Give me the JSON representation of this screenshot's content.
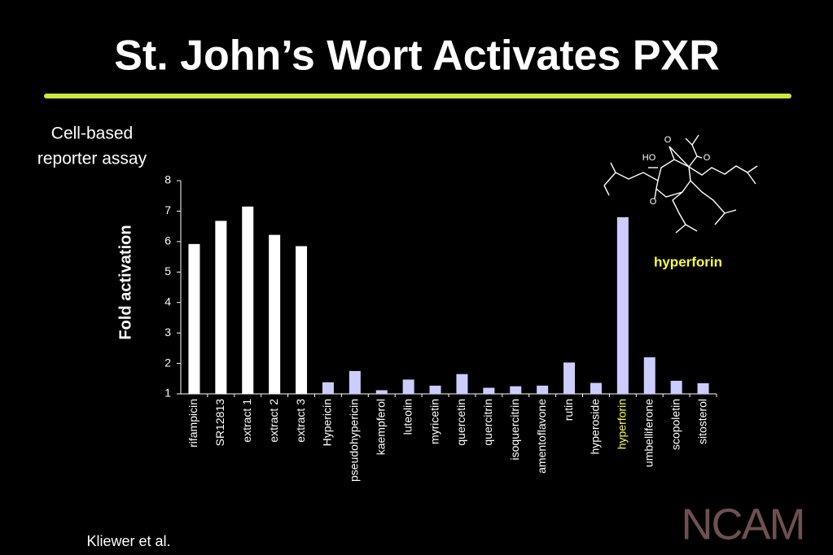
{
  "slide": {
    "title": "St. John’s Wort Activates PXR",
    "subtitle_lines": [
      "Cell-based",
      "reporter assay"
    ],
    "structure_name": "hyperforin",
    "structure_atoms": [
      "O",
      "HO",
      "O",
      "O"
    ],
    "citation": "Kliewer et al.",
    "logo": "NCAM"
  },
  "chart_data": {
    "type": "bar",
    "ylabel": "Fold activation",
    "categories": [
      "rifampicin",
      "SR12813",
      "extract 1",
      "extract 2",
      "extract 3",
      "Hypericin",
      "pseudohypericin",
      "kaempferol",
      "luteolin",
      "myricetin",
      "quercetin",
      "quercitrin",
      "isoquercitrin",
      "amentoflavone",
      "rutin",
      "hyperoside",
      "hyperforin",
      "umbelliferone",
      "scopoletin",
      "sitosterol"
    ],
    "values": [
      5.92,
      6.68,
      7.15,
      6.22,
      5.85,
      1.38,
      1.75,
      1.12,
      1.47,
      1.27,
      1.65,
      1.2,
      1.25,
      1.27,
      2.03,
      1.36,
      6.8,
      2.2,
      1.43,
      1.35
    ],
    "colors": [
      "#ffffff",
      "#ffffff",
      "#ffffff",
      "#ffffff",
      "#ffffff",
      "#ccccff",
      "#ccccff",
      "#ccccff",
      "#ccccff",
      "#ccccff",
      "#ccccff",
      "#ccccff",
      "#ccccff",
      "#ccccff",
      "#ccccff",
      "#ccccff",
      "#ccccff",
      "#ccccff",
      "#ccccff",
      "#ccccff"
    ],
    "label_colors": [
      "#ffffff",
      "#ffffff",
      "#ffffff",
      "#ffffff",
      "#ffffff",
      "#ffffff",
      "#ffffff",
      "#ffffff",
      "#ffffff",
      "#ffffff",
      "#ffffff",
      "#ffffff",
      "#ffffff",
      "#ffffff",
      "#ffffff",
      "#ffffff",
      "#ffff33",
      "#ffffff",
      "#ffffff",
      "#ffffff"
    ],
    "ylim": [
      1,
      8
    ],
    "yticks": [
      1,
      2,
      3,
      4,
      5,
      6,
      7,
      8
    ],
    "grid": false
  }
}
